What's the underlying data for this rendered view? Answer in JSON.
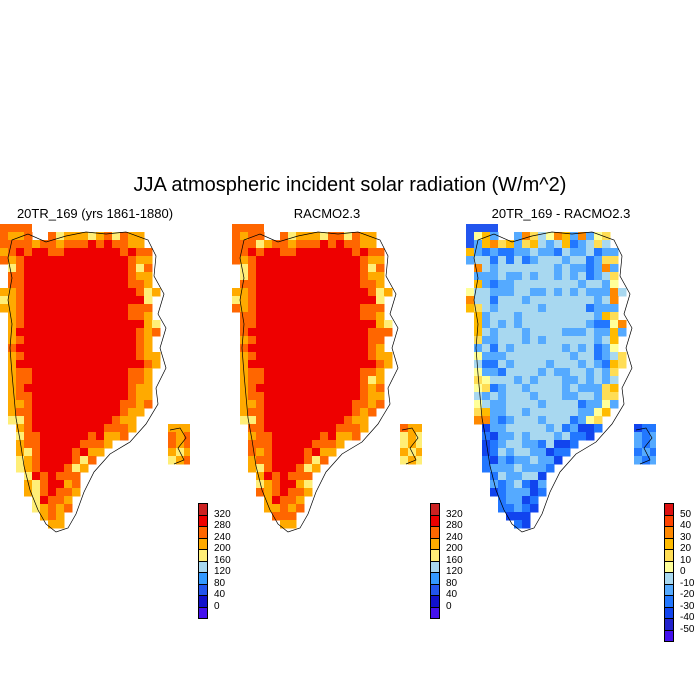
{
  "title": "JJA atmospheric incident solar radiation (W/m^2)",
  "panels": [
    {
      "title": "20TR_169 (yrs 1861-1880)",
      "variant": "model"
    },
    {
      "title": "RACMO2.3",
      "variant": "racmo"
    },
    {
      "title": "20TR_169 - RACMO2.3",
      "variant": "diff"
    }
  ],
  "colorbars": {
    "absolute": {
      "labels": [
        "320",
        "280",
        "240",
        "200",
        "160",
        "120",
        "80",
        "40",
        "0"
      ],
      "colors": [
        "#cc2222",
        "#ee0000",
        "#ff6600",
        "#ffaa00",
        "#ffee77",
        "#a8d8f0",
        "#3399ff",
        "#2255ee",
        "#1111cc",
        "#4411ee"
      ]
    },
    "difference": {
      "labels": [
        "50",
        "40",
        "30",
        "20",
        "10",
        "0",
        "-10",
        "-20",
        "-30",
        "-40",
        "-50"
      ],
      "colors": [
        "#dd1111",
        "#ff4400",
        "#ff8800",
        "#ffbb00",
        "#ffdd55",
        "#ffff99",
        "#a8d8f0",
        "#55aaff",
        "#2277ff",
        "#1144ee",
        "#2222cc",
        "#4411ee"
      ]
    }
  }
}
